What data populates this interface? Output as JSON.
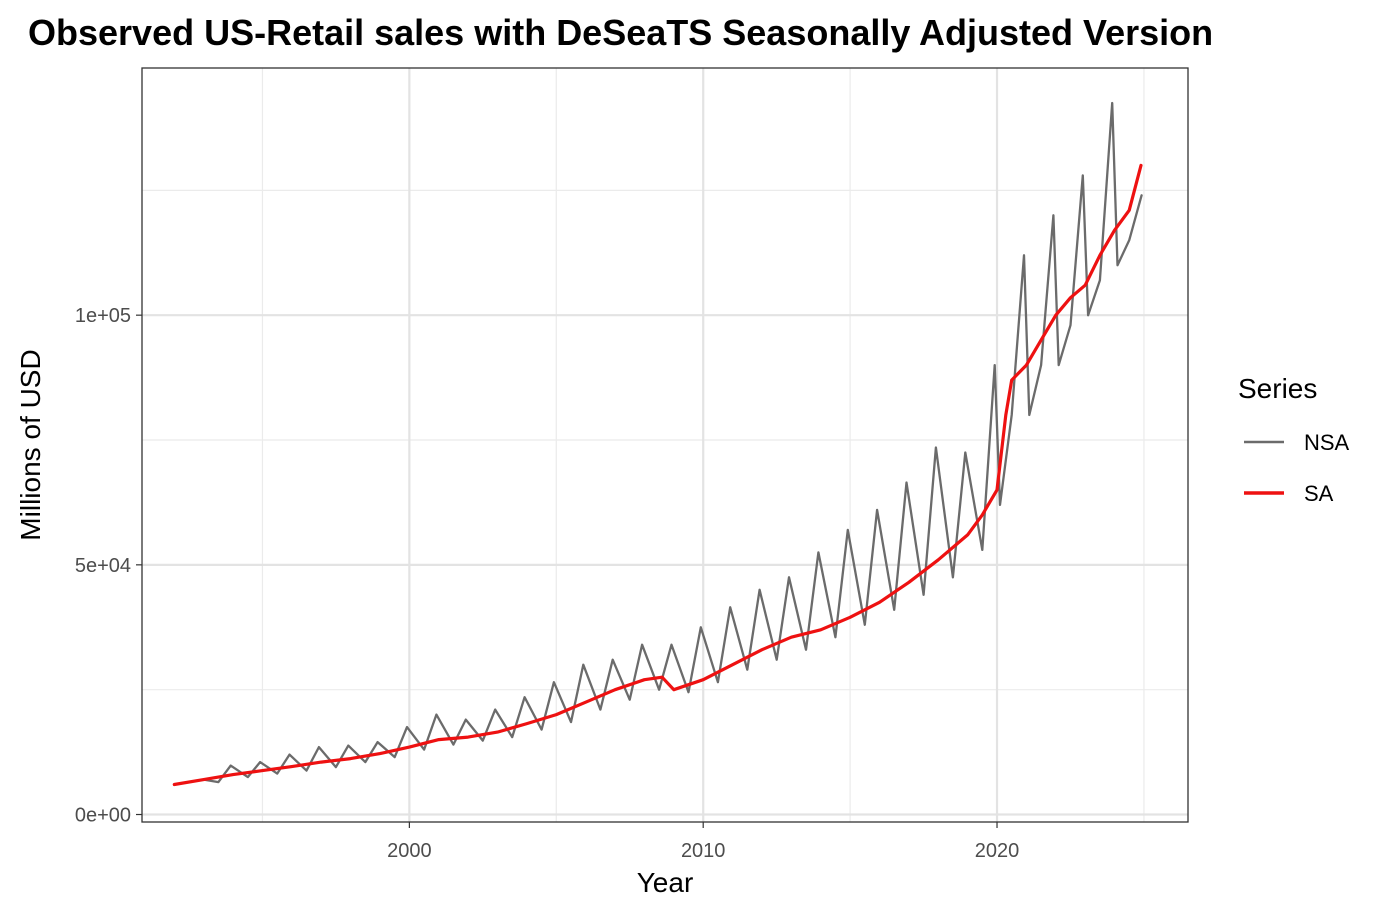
{
  "chart_data": {
    "type": "line",
    "title": "Observed US-Retail sales with DeSeaTS Seasonally Adjusted Version",
    "xlabel": "Year",
    "ylabel": "Millions of USD",
    "xlim": [
      1990.9,
      2026.5
    ],
    "ylim": [
      -1500,
      149500
    ],
    "x_ticks": [
      2000,
      2010,
      2020
    ],
    "x_tick_labels": [
      "2000",
      "2010",
      "2020"
    ],
    "y_ticks": [
      0,
      50000,
      100000
    ],
    "y_tick_labels": [
      "0e+00",
      "5e+04",
      "1e+05"
    ],
    "grid": true,
    "legend": {
      "title": "Series",
      "placement": "right"
    },
    "series": [
      {
        "name": "NSA",
        "color": "#6b6b6b",
        "x": [
          1992.0,
          1993.0,
          1993.5,
          1993.92,
          1994.5,
          1994.92,
          1995.5,
          1995.92,
          1996.5,
          1996.92,
          1997.5,
          1997.92,
          1998.5,
          1998.92,
          1999.5,
          1999.92,
          2000.5,
          2000.92,
          2001.5,
          2001.92,
          2002.5,
          2002.92,
          2003.5,
          2003.92,
          2004.5,
          2004.92,
          2005.5,
          2005.92,
          2006.5,
          2006.92,
          2007.5,
          2007.92,
          2008.5,
          2008.92,
          2009.5,
          2009.92,
          2010.5,
          2010.92,
          2011.5,
          2011.92,
          2012.5,
          2012.92,
          2013.5,
          2013.92,
          2014.5,
          2014.92,
          2015.5,
          2015.92,
          2016.5,
          2016.92,
          2017.5,
          2017.92,
          2018.5,
          2018.92,
          2019.5,
          2019.92,
          2020.1,
          2020.5,
          2020.92,
          2021.1,
          2021.5,
          2021.92,
          2022.1,
          2022.5,
          2022.92,
          2023.1,
          2023.5,
          2023.92,
          2024.1,
          2024.5,
          2024.92
        ],
        "values": [
          6000,
          7000,
          6500,
          9800,
          7500,
          10500,
          8200,
          12000,
          8800,
          13500,
          9500,
          13800,
          10500,
          14500,
          11500,
          17500,
          13000,
          20000,
          14000,
          19000,
          14800,
          21000,
          15500,
          23500,
          17000,
          26500,
          18500,
          30000,
          21000,
          31000,
          23000,
          34000,
          25000,
          34000,
          24500,
          37500,
          26500,
          41500,
          29000,
          45000,
          31000,
          47500,
          33000,
          52500,
          35500,
          57000,
          38000,
          61000,
          41000,
          66500,
          44000,
          73500,
          47500,
          72500,
          53000,
          90000,
          62000,
          80000,
          112000,
          80000,
          90000,
          120000,
          90000,
          98000,
          128000,
          100000,
          107000,
          142500,
          110000,
          115000,
          124000
        ]
      },
      {
        "name": "SA",
        "color": "#ee1111",
        "x": [
          1992.0,
          1993.0,
          1994.0,
          1995.0,
          1996.0,
          1997.0,
          1998.0,
          1999.0,
          2000.0,
          2001.0,
          2002.0,
          2003.0,
          2004.0,
          2005.0,
          2006.0,
          2007.0,
          2008.0,
          2008.6,
          2009.0,
          2010.0,
          2011.0,
          2012.0,
          2013.0,
          2014.0,
          2015.0,
          2016.0,
          2017.0,
          2018.0,
          2019.0,
          2019.5,
          2020.0,
          2020.3,
          2020.5,
          2021.0,
          2021.5,
          2022.0,
          2022.5,
          2023.0,
          2023.5,
          2024.0,
          2024.5,
          2024.9
        ],
        "values": [
          6000,
          7000,
          8000,
          8800,
          9600,
          10500,
          11200,
          12200,
          13500,
          15000,
          15500,
          16500,
          18200,
          20000,
          22500,
          25000,
          27000,
          27500,
          25000,
          27000,
          30000,
          33000,
          35500,
          37000,
          39500,
          42500,
          46500,
          51000,
          56000,
          60000,
          65000,
          80000,
          87000,
          90000,
          95000,
          100000,
          103500,
          106000,
          112000,
          117000,
          121000,
          130000
        ]
      }
    ]
  }
}
